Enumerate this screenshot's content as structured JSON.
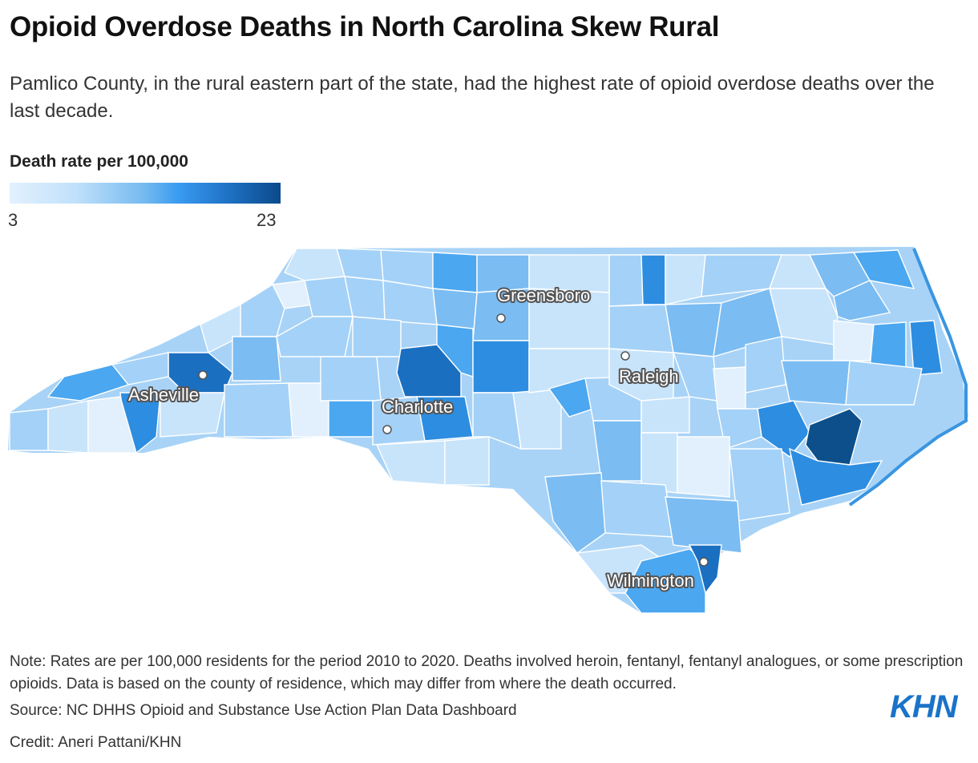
{
  "title": "Opioid Overdose Deaths in North Carolina Skew Rural",
  "subtitle": "Pamlico County, in the rural eastern part of the state, had the highest rate of opioid overdose deaths over the last decade.",
  "legend": {
    "title": "Death rate per 100,000",
    "min_label": "3",
    "max_label": "23",
    "min": 3,
    "max": 23,
    "colors": [
      "#e3f1fd",
      "#bfe0fb",
      "#74b9f0",
      "#3a9cf0",
      "#1f73c7",
      "#0b4a8a"
    ]
  },
  "cities": {
    "asheville": "Asheville",
    "charlotte": "Charlotte",
    "greensboro": "Greensboro",
    "raleigh": "Raleigh",
    "wilmington": "Wilmington"
  },
  "colors": {
    "very_light": "#e1f0fc",
    "light": "#c8e4fb",
    "mid_light": "#a4d1f7",
    "mid": "#7bbcf2",
    "bright": "#4aa7f0",
    "strong": "#2d8de0",
    "deep": "#1b6fc0",
    "darkest": "#0c4f8a",
    "coast": "#3a95e0"
  },
  "note": "Note: Rates are per 100,000 residents for the period 2010 to 2020. Deaths involved heroin, fentanyl, fentanyl analogues, or some prescription opioids. Data is based on the county of residence, which may differ from where the death occurred.",
  "source": "Source: NC DHHS Opioid and Substance Use Action Plan Data Dashboard",
  "credit": "Credit: Aneri Pattani/KHN",
  "logo_text": "KHN"
}
